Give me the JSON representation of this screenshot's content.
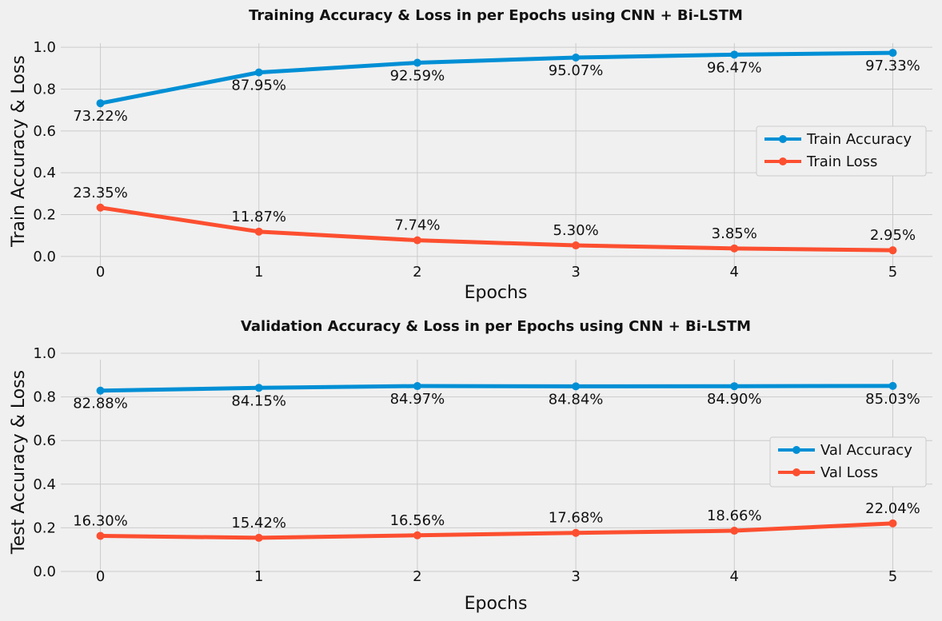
{
  "chart_data": [
    {
      "type": "line",
      "title": "Training Accuracy & Loss in per Epochs using CNN + Bi-LSTM",
      "xlabel": "Epochs",
      "ylabel": "Train Accuracy & Loss",
      "x": [
        0,
        1,
        2,
        3,
        4,
        5
      ],
      "xticks": [
        "0",
        "1",
        "2",
        "3",
        "4",
        "5"
      ],
      "yticks": [
        "0.0",
        "0.2",
        "0.4",
        "0.6",
        "0.8",
        "1.0"
      ],
      "xlim": [
        -0.25,
        5.25
      ],
      "ylim": [
        -0.05,
        1.05
      ],
      "grid": true,
      "legend": "center-right",
      "series": [
        {
          "name": "Train Accuracy",
          "color": "#008fd5",
          "values": [
            0.7322,
            0.8795,
            0.9259,
            0.9507,
            0.9647,
            0.9733
          ],
          "labels": [
            "73.22%",
            "87.95%",
            "92.59%",
            "95.07%",
            "96.47%",
            "97.33%"
          ],
          "label_pos": "below"
        },
        {
          "name": "Train Loss",
          "color": "#fc4f30",
          "values": [
            0.2335,
            0.1187,
            0.0774,
            0.053,
            0.0385,
            0.0295
          ],
          "labels": [
            "23.35%",
            "11.87%",
            "7.74%",
            "5.30%",
            "3.85%",
            "2.95%"
          ],
          "label_pos": "above"
        }
      ]
    },
    {
      "type": "line",
      "title": "Validation Accuracy & Loss in per Epochs using CNN + Bi-LSTM",
      "xlabel": "Epochs",
      "ylabel": "Test Accuracy & Loss",
      "x": [
        0,
        1,
        2,
        3,
        4,
        5
      ],
      "xticks": [
        "0",
        "1",
        "2",
        "3",
        "4",
        "5"
      ],
      "yticks": [
        "0.0",
        "0.2",
        "0.4",
        "0.6",
        "0.8",
        "1.0"
      ],
      "xlim": [
        -0.25,
        5.25
      ],
      "ylim": [
        0,
        1
      ],
      "grid": true,
      "legend": "center-right",
      "series": [
        {
          "name": "Val Accuracy",
          "color": "#008fd5",
          "values": [
            0.8288,
            0.8415,
            0.8497,
            0.8484,
            0.849,
            0.8503
          ],
          "labels": [
            "82.88%",
            "84.15%",
            "84.97%",
            "84.84%",
            "84.90%",
            "85.03%"
          ],
          "label_pos": "below"
        },
        {
          "name": "Val Loss",
          "color": "#fc4f30",
          "values": [
            0.163,
            0.1542,
            0.1656,
            0.1768,
            0.1866,
            0.2204
          ],
          "labels": [
            "16.30%",
            "15.42%",
            "16.56%",
            "17.68%",
            "18.66%",
            "22.04%"
          ],
          "label_pos": "above"
        }
      ]
    }
  ]
}
